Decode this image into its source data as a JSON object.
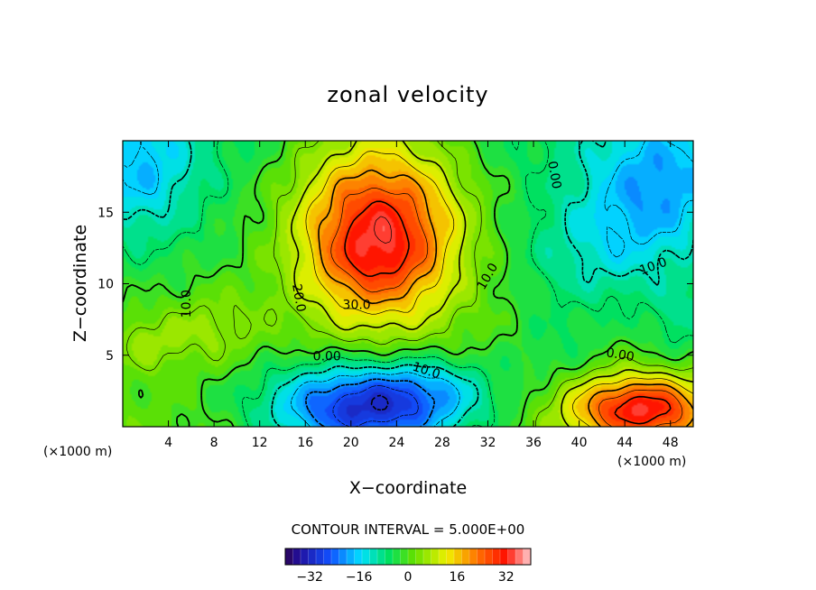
{
  "chart_data": {
    "type": "contour",
    "title": "zonal velocity",
    "xlabel": "X−coordinate",
    "ylabel": "Z−coordinate",
    "x_units": "(×1000 m)",
    "z_units": "(×1000 m)",
    "xlim": [
      0,
      50
    ],
    "zlim": [
      0,
      20
    ],
    "x_ticks": [
      4,
      8,
      12,
      16,
      20,
      24,
      28,
      32,
      36,
      40,
      44,
      48
    ],
    "z_ticks": [
      5,
      10,
      15
    ],
    "contour_interval_text": "CONTOUR INTERVAL = 5.000E+00",
    "contour_interval": 5.0,
    "colorbar": {
      "range": [
        -40,
        40
      ],
      "ticks": [
        -32,
        -16,
        0,
        16,
        32
      ]
    },
    "contour_labels": [
      {
        "text": "10.0",
        "x": 5.6,
        "z": 8.6,
        "rotate": -90
      },
      {
        "text": "20.0",
        "x": 15.4,
        "z": 9.0,
        "rotate": 80
      },
      {
        "text": "30.0",
        "x": 20.5,
        "z": 8.5,
        "rotate": 0
      },
      {
        "text": "10.0",
        "x": 32.0,
        "z": 10.5,
        "rotate": -60
      },
      {
        "text": "0.00",
        "x": 37.8,
        "z": 17.6,
        "rotate": 80
      },
      {
        "text": "10.0",
        "x": 46.5,
        "z": 11.2,
        "rotate": -20
      },
      {
        "text": "0.00",
        "x": 17.9,
        "z": 4.9,
        "rotate": 0
      },
      {
        "text": "10.0",
        "x": 26.6,
        "z": 3.9,
        "rotate": 18
      },
      {
        "text": "0.00",
        "x": 43.6,
        "z": 5.0,
        "rotate": 10
      }
    ],
    "features": [
      {
        "kind": "jet_max",
        "x": 23,
        "z": 15,
        "u": 37
      },
      {
        "kind": "jet_max",
        "x": 22,
        "z": 12,
        "u": 38
      },
      {
        "kind": "low_level_min",
        "x": 21,
        "z": 1.5,
        "u": -30
      },
      {
        "kind": "surface_max",
        "x": 46,
        "z": 1.2,
        "u": 30
      }
    ]
  }
}
